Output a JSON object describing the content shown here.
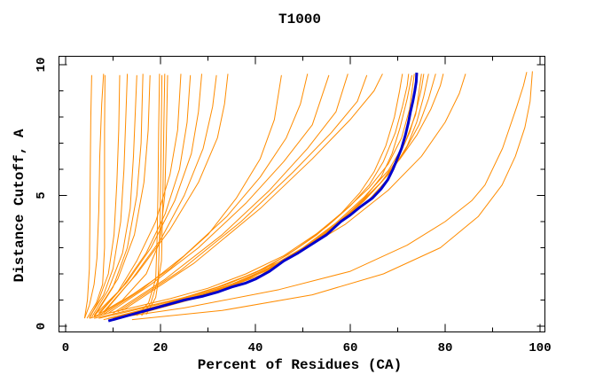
{
  "page": {
    "background": "#ffffff"
  },
  "chart_data": {
    "type": "line",
    "title": "T1000",
    "xlabel": "Percent of Residues (CA)",
    "ylabel": "Distance Cutoff, A",
    "xlim": [
      0,
      100
    ],
    "ylim": [
      0,
      10
    ],
    "x_major_ticks": [
      0,
      20,
      40,
      60,
      80,
      100
    ],
    "x_minor_ticks": [
      10,
      30,
      50,
      70,
      90
    ],
    "y_major_ticks": [
      0,
      5,
      10
    ],
    "y_minor_ticks": [
      1,
      2,
      3,
      4,
      6,
      7,
      8,
      9
    ],
    "grid": false,
    "legend": null,
    "frame_color": "#000000",
    "model_color": "#ff8c00",
    "model_line_width": 1,
    "highlight_color": "#0000cd",
    "highlight_line_width": 3,
    "highlight_series": {
      "name": "highlight-curve",
      "points": [
        [
          9,
          0.2
        ],
        [
          13,
          0.4
        ],
        [
          17,
          0.6
        ],
        [
          21,
          0.8
        ],
        [
          25,
          1.0
        ],
        [
          29,
          1.15
        ],
        [
          32,
          1.3
        ],
        [
          35,
          1.5
        ],
        [
          38,
          1.65
        ],
        [
          40,
          1.8
        ],
        [
          43,
          2.1
        ],
        [
          46,
          2.5
        ],
        [
          49,
          2.8
        ],
        [
          52,
          3.15
        ],
        [
          55,
          3.5
        ],
        [
          58,
          4.0
        ],
        [
          60,
          4.25
        ],
        [
          62,
          4.55
        ],
        [
          64.7,
          4.9
        ],
        [
          66.5,
          5.25
        ],
        [
          67.9,
          5.6
        ],
        [
          69,
          6.0
        ],
        [
          69.9,
          6.4
        ],
        [
          70.8,
          6.8
        ],
        [
          71.6,
          7.3
        ],
        [
          72.2,
          7.75
        ],
        [
          72.7,
          8.2
        ],
        [
          73.2,
          8.6
        ],
        [
          73.6,
          9.0
        ],
        [
          73.9,
          9.35
        ],
        [
          74,
          9.7
        ]
      ]
    },
    "models": [
      [
        [
          4,
          0.3
        ],
        [
          4.6,
          1.0
        ],
        [
          5,
          2.2
        ],
        [
          5.1,
          3.8
        ],
        [
          5.2,
          6.0
        ],
        [
          5.3,
          8.0
        ],
        [
          5.5,
          9.6
        ]
      ],
      [
        [
          4,
          0.3
        ],
        [
          5,
          0.8
        ],
        [
          6,
          1.6
        ],
        [
          6.6,
          2.6
        ],
        [
          7,
          4.4
        ],
        [
          7.2,
          6.5
        ],
        [
          7.6,
          8.5
        ],
        [
          8,
          9.65
        ]
      ],
      [
        [
          4.5,
          0.3
        ],
        [
          6.5,
          0.9
        ],
        [
          7.8,
          1.6
        ],
        [
          8.2,
          3.0
        ],
        [
          8.2,
          5.5
        ],
        [
          8.2,
          7.5
        ],
        [
          8.3,
          9.6
        ]
      ],
      [
        [
          5,
          0.3
        ],
        [
          7,
          1.0
        ],
        [
          9,
          2.0
        ],
        [
          10.2,
          3.5
        ],
        [
          10.8,
          5.5
        ],
        [
          11.2,
          7.5
        ],
        [
          11.4,
          9.6
        ]
      ],
      [
        [
          5,
          0.35
        ],
        [
          8,
          1.2
        ],
        [
          10,
          2.2
        ],
        [
          11.6,
          4.0
        ],
        [
          12.3,
          6.0
        ],
        [
          12.7,
          8.0
        ],
        [
          13,
          9.65
        ]
      ],
      [
        [
          5.5,
          0.35
        ],
        [
          9,
          1.4
        ],
        [
          12,
          2.8
        ],
        [
          13.6,
          4.5
        ],
        [
          14.3,
          6.5
        ],
        [
          14.7,
          8.2
        ],
        [
          15,
          9.6
        ]
      ],
      [
        [
          6,
          0.35
        ],
        [
          10,
          1.5
        ],
        [
          13,
          3.0
        ],
        [
          15,
          5.0
        ],
        [
          15.9,
          7.0
        ],
        [
          16.1,
          8.3
        ],
        [
          16.3,
          9.65
        ]
      ],
      [
        [
          6,
          0.4
        ],
        [
          11,
          1.8
        ],
        [
          14.5,
          3.5
        ],
        [
          16.5,
          5.5
        ],
        [
          17.4,
          7.5
        ],
        [
          17.8,
          9.6
        ]
      ],
      [
        [
          15,
          0.4
        ],
        [
          17.5,
          0.9
        ],
        [
          19,
          1.8
        ],
        [
          19.3,
          3.5
        ],
        [
          19.5,
          5.5
        ],
        [
          19.6,
          7.5
        ],
        [
          19.8,
          9.65
        ]
      ],
      [
        [
          16,
          0.4
        ],
        [
          18,
          0.9
        ],
        [
          19.5,
          1.8
        ],
        [
          19.9,
          4.0
        ],
        [
          20.1,
          6.5
        ],
        [
          20.3,
          9.6
        ]
      ],
      [
        [
          17,
          0.45
        ],
        [
          19,
          1.1
        ],
        [
          20.2,
          2.5
        ],
        [
          20.5,
          5.0
        ],
        [
          20.7,
          7.5
        ],
        [
          20.9,
          9.65
        ]
      ],
      [
        [
          6,
          0.35
        ],
        [
          12,
          1.0
        ],
        [
          17,
          2.0
        ],
        [
          19.8,
          3.2
        ],
        [
          20.9,
          5.0
        ],
        [
          21.2,
          7.0
        ],
        [
          21.5,
          9.6
        ]
      ],
      [
        [
          6,
          0.4
        ],
        [
          11,
          1.3
        ],
        [
          15,
          2.5
        ],
        [
          19,
          4.0
        ],
        [
          22,
          5.8
        ],
        [
          23.6,
          7.5
        ],
        [
          24.3,
          9.65
        ]
      ],
      [
        [
          7,
          0.45
        ],
        [
          12,
          1.5
        ],
        [
          17,
          2.8
        ],
        [
          21,
          4.3
        ],
        [
          24,
          6.0
        ],
        [
          25.6,
          7.8
        ],
        [
          26.3,
          9.6
        ]
      ],
      [
        [
          7,
          0.5
        ],
        [
          13,
          1.7
        ],
        [
          18,
          3.0
        ],
        [
          23,
          4.8
        ],
        [
          26.5,
          6.6
        ],
        [
          28,
          8.2
        ],
        [
          28.7,
          9.65
        ]
      ],
      [
        [
          8,
          0.5
        ],
        [
          14,
          1.8
        ],
        [
          20,
          3.3
        ],
        [
          25,
          5.0
        ],
        [
          29,
          6.8
        ],
        [
          31,
          8.4
        ],
        [
          31.8,
          9.6
        ]
      ],
      [
        [
          8,
          0.55
        ],
        [
          15,
          2.0
        ],
        [
          22,
          3.7
        ],
        [
          28,
          5.5
        ],
        [
          32,
          7.2
        ],
        [
          33.5,
          8.5
        ],
        [
          34.2,
          9.65
        ]
      ],
      [
        [
          6,
          0.3
        ],
        [
          12,
          0.55
        ],
        [
          18,
          0.8
        ],
        [
          25,
          1.1
        ],
        [
          32,
          1.5
        ],
        [
          40,
          2.05
        ],
        [
          47,
          2.75
        ],
        [
          53,
          3.5
        ],
        [
          58,
          4.3
        ],
        [
          62,
          5.1
        ],
        [
          65,
          5.9
        ],
        [
          67.5,
          6.9
        ],
        [
          69.3,
          8.0
        ],
        [
          70.4,
          9.0
        ],
        [
          71,
          9.65
        ]
      ],
      [
        [
          7,
          0.3
        ],
        [
          13,
          0.55
        ],
        [
          20,
          0.85
        ],
        [
          27,
          1.2
        ],
        [
          34,
          1.6
        ],
        [
          42,
          2.2
        ],
        [
          49,
          3.0
        ],
        [
          55,
          3.8
        ],
        [
          60,
          4.6
        ],
        [
          64,
          5.4
        ],
        [
          67,
          6.3
        ],
        [
          69.5,
          7.4
        ],
        [
          71,
          8.4
        ],
        [
          72,
          9.2
        ],
        [
          72.3,
          9.65
        ]
      ],
      [
        [
          8,
          0.25
        ],
        [
          14,
          0.5
        ],
        [
          21,
          0.75
        ],
        [
          28,
          1.1
        ],
        [
          35,
          1.55
        ],
        [
          42,
          2.1
        ],
        [
          48,
          2.7
        ],
        [
          54,
          3.4
        ],
        [
          59,
          4.2
        ],
        [
          63,
          4.9
        ],
        [
          66.5,
          5.7
        ],
        [
          68.8,
          6.6
        ],
        [
          70.5,
          7.6
        ],
        [
          72,
          8.7
        ],
        [
          73,
          9.6
        ]
      ],
      [
        [
          9.5,
          0.2
        ],
        [
          17,
          0.6
        ],
        [
          25,
          1.0
        ],
        [
          33,
          1.4
        ],
        [
          41,
          1.95
        ],
        [
          47,
          2.6
        ],
        [
          53,
          3.3
        ],
        [
          59,
          4.15
        ],
        [
          64,
          4.85
        ],
        [
          68,
          5.65
        ],
        [
          70.3,
          6.5
        ],
        [
          72,
          7.5
        ],
        [
          73,
          8.4
        ],
        [
          73.7,
          9.1
        ],
        [
          74.2,
          9.65
        ]
      ],
      [
        [
          10,
          0.3
        ],
        [
          18,
          0.65
        ],
        [
          27,
          1.05
        ],
        [
          36,
          1.6
        ],
        [
          44,
          2.3
        ],
        [
          51,
          3.1
        ],
        [
          57,
          3.9
        ],
        [
          62,
          4.7
        ],
        [
          66.5,
          5.5
        ],
        [
          70,
          6.4
        ],
        [
          72.5,
          7.4
        ],
        [
          74,
          8.3
        ],
        [
          75,
          9.1
        ],
        [
          75.5,
          9.65
        ]
      ],
      [
        [
          11,
          0.35
        ],
        [
          20,
          0.75
        ],
        [
          30,
          1.25
        ],
        [
          39,
          1.85
        ],
        [
          47,
          2.6
        ],
        [
          54,
          3.45
        ],
        [
          60,
          4.35
        ],
        [
          65,
          5.2
        ],
        [
          69,
          6.0
        ],
        [
          72,
          6.9
        ],
        [
          74,
          7.8
        ],
        [
          75.5,
          8.8
        ],
        [
          76.5,
          9.65
        ]
      ],
      [
        [
          12,
          0.4
        ],
        [
          22,
          0.85
        ],
        [
          32,
          1.4
        ],
        [
          42,
          2.1
        ],
        [
          50,
          2.95
        ],
        [
          57,
          3.85
        ],
        [
          63,
          4.8
        ],
        [
          68,
          5.8
        ],
        [
          71.5,
          6.7
        ],
        [
          74.5,
          7.7
        ],
        [
          76.5,
          8.7
        ],
        [
          78,
          9.65
        ]
      ],
      [
        [
          13,
          0.45
        ],
        [
          24,
          1.0
        ],
        [
          35,
          1.6
        ],
        [
          45,
          2.4
        ],
        [
          53,
          3.3
        ],
        [
          60,
          4.3
        ],
        [
          66,
          5.4
        ],
        [
          70.5,
          6.4
        ],
        [
          74,
          7.3
        ],
        [
          77,
          8.3
        ],
        [
          79,
          9.2
        ],
        [
          79.6,
          9.65
        ]
      ],
      [
        [
          5,
          0.3
        ],
        [
          9,
          0.5
        ],
        [
          15,
          0.75
        ],
        [
          22,
          1.05
        ],
        [
          30,
          1.45
        ],
        [
          38,
          2.0
        ],
        [
          46,
          2.7
        ],
        [
          53,
          3.55
        ],
        [
          59,
          4.45
        ],
        [
          64,
          5.3
        ],
        [
          68,
          6.2
        ],
        [
          70.8,
          7.2
        ],
        [
          72.5,
          8.3
        ],
        [
          73.5,
          9.65
        ]
      ],
      [
        [
          16,
          0.5
        ],
        [
          24,
          0.9
        ],
        [
          33,
          1.45
        ],
        [
          42,
          2.15
        ],
        [
          50,
          3.0
        ],
        [
          57,
          3.95
        ],
        [
          63,
          4.95
        ],
        [
          68,
          5.95
        ],
        [
          71.5,
          7.0
        ],
        [
          73.8,
          8.1
        ],
        [
          75,
          9.65
        ]
      ],
      [
        [
          7,
          0.4
        ],
        [
          14,
          1.2
        ],
        [
          22,
          2.2
        ],
        [
          30,
          3.5
        ],
        [
          36,
          4.9
        ],
        [
          41,
          6.4
        ],
        [
          44,
          7.9
        ],
        [
          45.5,
          9.6
        ]
      ],
      [
        [
          8,
          0.45
        ],
        [
          16,
          1.4
        ],
        [
          25,
          2.7
        ],
        [
          34,
          4.2
        ],
        [
          41,
          5.7
        ],
        [
          46.5,
          7.2
        ],
        [
          49.5,
          8.5
        ],
        [
          51,
          9.65
        ]
      ],
      [
        [
          9,
          0.5
        ],
        [
          18,
          1.6
        ],
        [
          28,
          3.0
        ],
        [
          38,
          4.7
        ],
        [
          46,
          6.3
        ],
        [
          52,
          7.7
        ],
        [
          55.5,
          9.6
        ]
      ],
      [
        [
          10,
          0.5
        ],
        [
          21,
          1.8
        ],
        [
          33,
          3.5
        ],
        [
          43,
          5.2
        ],
        [
          51,
          6.8
        ],
        [
          57,
          8.2
        ],
        [
          59.5,
          9.65
        ]
      ],
      [
        [
          11,
          0.55
        ],
        [
          24,
          2.1
        ],
        [
          37,
          4.0
        ],
        [
          48,
          5.9
        ],
        [
          56,
          7.4
        ],
        [
          61.5,
          8.6
        ],
        [
          63.5,
          9.6
        ]
      ],
      [
        [
          12,
          0.6
        ],
        [
          27,
          2.4
        ],
        [
          41,
          4.5
        ],
        [
          52,
          6.4
        ],
        [
          60,
          7.9
        ],
        [
          65,
          9.0
        ],
        [
          66.8,
          9.65
        ]
      ],
      [
        [
          9,
          0.3
        ],
        [
          20,
          0.8
        ],
        [
          34,
          1.6
        ],
        [
          48,
          2.7
        ],
        [
          59,
          3.9
        ],
        [
          68,
          5.2
        ],
        [
          75,
          6.5
        ],
        [
          80,
          7.8
        ],
        [
          83,
          8.9
        ],
        [
          84.3,
          9.65
        ]
      ],
      [
        [
          10,
          0.3
        ],
        [
          25,
          0.7
        ],
        [
          45,
          1.4
        ],
        [
          60,
          2.1
        ],
        [
          72,
          3.1
        ],
        [
          80,
          4.0
        ],
        [
          85.6,
          4.8
        ],
        [
          88.4,
          5.4
        ],
        [
          92.1,
          6.8
        ],
        [
          95.1,
          8.4
        ],
        [
          96.5,
          9.2
        ],
        [
          97.2,
          9.72
        ]
      ],
      [
        [
          14,
          0.25
        ],
        [
          33,
          0.6
        ],
        [
          52,
          1.2
        ],
        [
          67,
          2.0
        ],
        [
          79,
          3.0
        ],
        [
          87,
          4.2
        ],
        [
          92,
          5.4
        ],
        [
          94.8,
          6.5
        ],
        [
          96.8,
          7.6
        ],
        [
          97.9,
          8.6
        ],
        [
          98.4,
          9.75
        ]
      ]
    ]
  }
}
